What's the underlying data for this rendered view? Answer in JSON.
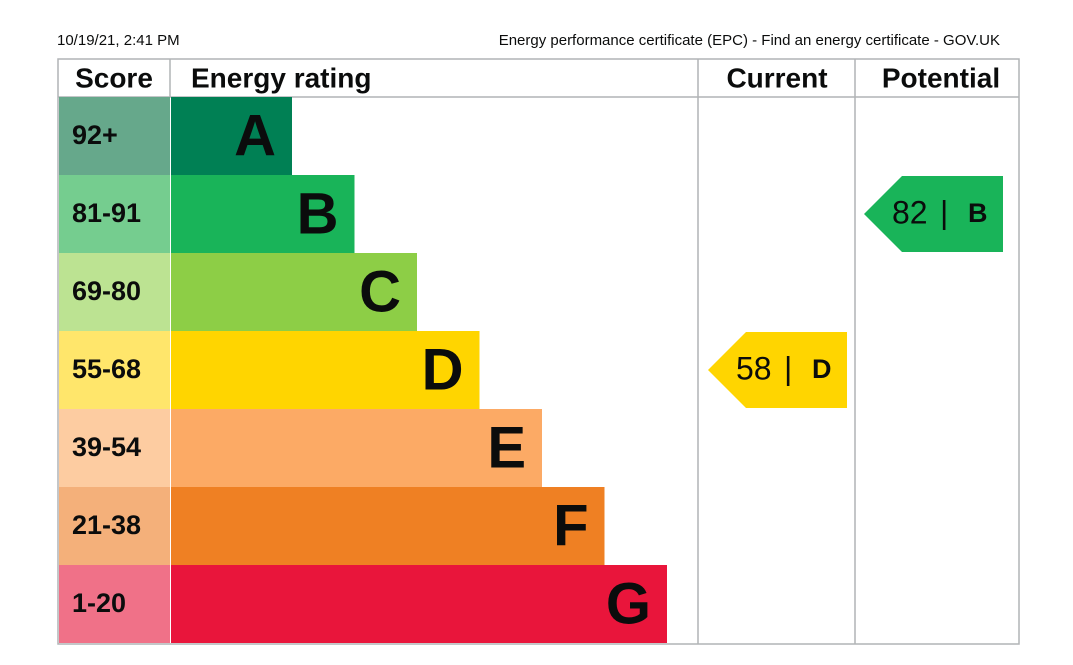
{
  "header": {
    "timestamp": "10/19/21, 2:41 PM",
    "page_title": "Energy performance certificate (EPC) - Find an energy certificate - GOV.UK"
  },
  "table": {
    "headers": [
      "Score",
      "Energy rating",
      "Current",
      "Potential"
    ],
    "rows": [
      {
        "score": "92+",
        "band": "A",
        "color": "#008054",
        "score_color": "#66a88b"
      },
      {
        "score": "81-91",
        "band": "B",
        "color": "#19b459",
        "score_color": "#75cd8f"
      },
      {
        "score": "69-80",
        "band": "C",
        "color": "#8dce46",
        "score_color": "#bce392"
      },
      {
        "score": "55-68",
        "band": "D",
        "color": "#ffd500",
        "score_color": "#ffe66b"
      },
      {
        "score": "39-54",
        "band": "E",
        "color": "#fcaa65",
        "score_color": "#fdcca1"
      },
      {
        "score": "21-38",
        "band": "F",
        "color": "#ef8023",
        "score_color": "#f4b07a"
      },
      {
        "score": "1-20",
        "band": "G",
        "color": "#e9153b",
        "score_color": "#f07188"
      }
    ],
    "current": {
      "score": 58,
      "band": "D"
    },
    "potential": {
      "score": 82,
      "band": "B"
    },
    "separator": "|"
  }
}
